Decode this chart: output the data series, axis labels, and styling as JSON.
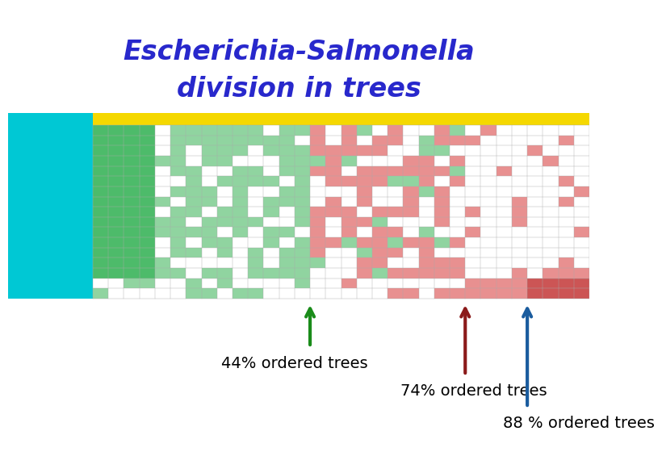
{
  "title_line1": "Escherichia-Salmonella",
  "title_line2": "division in trees",
  "title_color": "#2828cc",
  "title_fontsize": 24,
  "bg_color": "#ffffff",
  "header_bg": "#00c8d4",
  "row_label_bg": "#00c8d4",
  "col_header_bg": "#f5d800",
  "cell_green_dark": "#4dbb6a",
  "cell_green_light": "#90d4a0",
  "cell_red_dark": "#cc5555",
  "cell_red_light": "#e89090",
  "cell_white": "#ffffff",
  "arrow1_color": "#1a8c1a",
  "arrow2_color": "#8b1a1a",
  "arrow3_color": "#1a5c9e",
  "label1_text": "44% ordered trees",
  "label2_text": "74% ordered trees",
  "label3_text": "88 % ordered trees",
  "label_fontsize": 14
}
